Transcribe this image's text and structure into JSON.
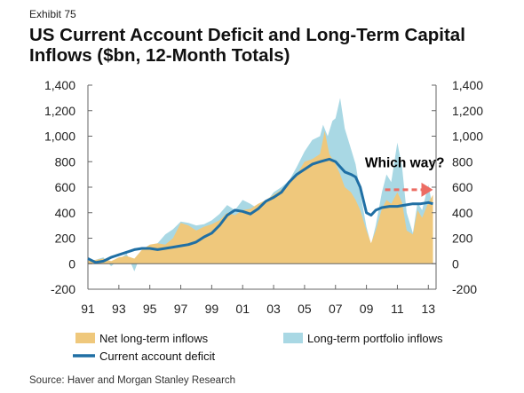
{
  "exhibit": "Exhibit 75",
  "title_line1": "US Current Account Deficit and Long-Term Capital",
  "title_line2": "Inflows ($bn, 12-Month Totals)",
  "source": "Source: Haver and Morgan Stanley Research",
  "colors": {
    "net_inflows": "#efc87c",
    "portfolio_inflows": "#a9d8e4",
    "deficit": "#1f6fa4",
    "arrow": "#ec6c63",
    "axis": "#666666"
  },
  "chart_data": {
    "type": "area",
    "x_range": [
      1991,
      2013.5
    ],
    "ylim": [
      -200,
      1400
    ],
    "yticks": [
      -200,
      0,
      200,
      400,
      600,
      800,
      1000,
      1200,
      1400
    ],
    "ytick_labels_left": [
      "-200",
      "0",
      "200",
      "400",
      "600",
      "800",
      "1,000",
      "1,200",
      "1,400"
    ],
    "ytick_labels_right": [
      "-200",
      "0",
      "200",
      "400",
      "600",
      "800",
      "1,000",
      "1,200",
      "1,400"
    ],
    "xtick_labels": [
      "91",
      "93",
      "95",
      "97",
      "99",
      "01",
      "03",
      "05",
      "07",
      "09",
      "11",
      "13"
    ],
    "xtick_years": [
      1991,
      1993,
      1995,
      1997,
      1999,
      2001,
      2003,
      2005,
      2007,
      2009,
      2011,
      2013
    ],
    "grid": false,
    "legend_position": "bottom",
    "annotation": {
      "text": "Which way?",
      "x": 2008.9,
      "y": 755,
      "arrow_from": [
        2010.2,
        580
      ],
      "arrow_to": [
        2013.3,
        580
      ]
    },
    "series": [
      {
        "name": "Long-term portfolio inflows",
        "type": "area",
        "x": [
          1991,
          1991.5,
          1992,
          1992.5,
          1993,
          1993.5,
          1994,
          1994.5,
          1995,
          1995.5,
          1996,
          1996.5,
          1997,
          1997.5,
          1998,
          1998.5,
          1999,
          1999.5,
          2000,
          2000.5,
          2001,
          2001.5,
          2002,
          2002.5,
          2003,
          2003.5,
          2004,
          2004.5,
          2005,
          2005.5,
          2006,
          2006.2,
          2006.5,
          2006.8,
          2007,
          2007.3,
          2007.6,
          2008,
          2008.3,
          2008.6,
          2009,
          2009.3,
          2009.6,
          2010,
          2010.3,
          2010.6,
          2011,
          2011.3,
          2011.6,
          2012,
          2012.3,
          2012.6,
          2013,
          2013.3
        ],
        "values": [
          20,
          30,
          50,
          -20,
          30,
          80,
          -60,
          100,
          130,
          160,
          230,
          270,
          330,
          320,
          300,
          310,
          340,
          390,
          460,
          420,
          500,
          470,
          430,
          480,
          560,
          600,
          650,
          760,
          880,
          970,
          1000,
          1090,
          1000,
          1120,
          1140,
          1300,
          1060,
          900,
          780,
          560,
          290,
          150,
          300,
          560,
          700,
          640,
          950,
          760,
          400,
          240,
          480,
          420,
          620,
          430
        ]
      },
      {
        "name": "Net long-term inflows",
        "type": "area",
        "x": [
          1991,
          1991.5,
          1992,
          1992.5,
          1993,
          1993.5,
          1994,
          1994.5,
          1995,
          1995.5,
          1996,
          1996.5,
          1997,
          1997.5,
          1998,
          1998.5,
          1999,
          1999.5,
          2000,
          2000.5,
          2001,
          2001.5,
          2002,
          2002.5,
          2003,
          2003.5,
          2004,
          2004.5,
          2005,
          2005.5,
          2006,
          2006.3,
          2006.6,
          2007,
          2007.3,
          2007.6,
          2008,
          2008.3,
          2008.6,
          2009,
          2009.3,
          2009.6,
          2010,
          2010.3,
          2010.6,
          2011,
          2011.3,
          2011.6,
          2012,
          2012.3,
          2012.6,
          2013,
          2013.3
        ],
        "values": [
          20,
          30,
          40,
          20,
          50,
          60,
          40,
          110,
          150,
          160,
          150,
          200,
          320,
          300,
          260,
          290,
          310,
          340,
          400,
          380,
          420,
          430,
          470,
          500,
          540,
          580,
          620,
          700,
          800,
          820,
          860,
          1040,
          860,
          780,
          700,
          600,
          560,
          500,
          420,
          260,
          160,
          260,
          430,
          500,
          470,
          560,
          480,
          260,
          230,
          420,
          360,
          480,
          540
        ]
      },
      {
        "name": "Current account deficit",
        "type": "line",
        "x": [
          1991,
          1991.5,
          1992,
          1992.5,
          1993,
          1993.5,
          1994,
          1994.5,
          1995,
          1995.5,
          1996,
          1996.5,
          1997,
          1997.5,
          1998,
          1998.5,
          1999,
          1999.5,
          2000,
          2000.5,
          2001,
          2001.5,
          2002,
          2002.5,
          2003,
          2003.5,
          2004,
          2004.5,
          2005,
          2005.5,
          2006,
          2006.3,
          2006.6,
          2007,
          2007.3,
          2007.6,
          2008,
          2008.3,
          2008.6,
          2009,
          2009.3,
          2009.6,
          2010,
          2010.5,
          2011,
          2011.5,
          2012,
          2012.5,
          2013,
          2013.3
        ],
        "values": [
          40,
          10,
          20,
          50,
          70,
          90,
          110,
          120,
          120,
          110,
          120,
          130,
          140,
          150,
          170,
          210,
          240,
          300,
          380,
          420,
          410,
          390,
          430,
          490,
          520,
          560,
          640,
          700,
          740,
          780,
          800,
          810,
          820,
          800,
          760,
          720,
          700,
          680,
          600,
          400,
          380,
          420,
          440,
          450,
          450,
          460,
          470,
          470,
          480,
          470
        ]
      }
    ]
  }
}
